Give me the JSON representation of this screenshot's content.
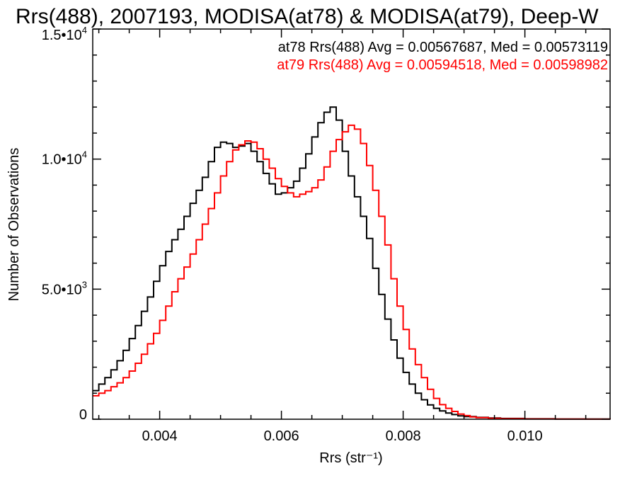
{
  "chart_data": {
    "type": "line",
    "style": "step",
    "title": "Rrs(488), 2007193, MODISA(at78) & MODISA(at79), Deep-W",
    "xlabel": "Rrs (str⁻¹)",
    "ylabel": "Number of Observations",
    "xlim": [
      0.0029,
      0.0114
    ],
    "ylim": [
      0,
      15000
    ],
    "grid": false,
    "x_ticks": [
      {
        "value": 0.004,
        "label": "0.004"
      },
      {
        "value": 0.006,
        "label": "0.006"
      },
      {
        "value": 0.008,
        "label": "0.008"
      },
      {
        "value": 0.01,
        "label": "0.010"
      }
    ],
    "y_ticks": [
      {
        "value": 0,
        "label_main": "0",
        "label_exp": ""
      },
      {
        "value": 5000,
        "label_main": "5.0•10",
        "label_exp": "3"
      },
      {
        "value": 10000,
        "label_main": "1.0•10",
        "label_exp": "4"
      },
      {
        "value": 15000,
        "label_main": "1.5•10",
        "label_exp": "4"
      }
    ],
    "annotations": [
      {
        "text": "at78 Rrs(488) Avg = 0.00567687, Med = 0.00573119",
        "color": "#000000"
      },
      {
        "text": "at79 Rrs(488) Avg = 0.00594518, Med = 0.00598982",
        "color": "#ff0000"
      }
    ],
    "series": [
      {
        "color": "#000000",
        "x": [
          0.0029,
          0.003,
          0.0031,
          0.0032,
          0.0033,
          0.0034,
          0.0035,
          0.0036,
          0.0037,
          0.0038,
          0.0039,
          0.004,
          0.0041,
          0.0042,
          0.0043,
          0.0044,
          0.0045,
          0.0046,
          0.0047,
          0.0048,
          0.0049,
          0.005,
          0.0051,
          0.0052,
          0.0053,
          0.0054,
          0.0055,
          0.0056,
          0.0057,
          0.0058,
          0.0059,
          0.006,
          0.0061,
          0.0062,
          0.0063,
          0.0064,
          0.0065,
          0.0066,
          0.0067,
          0.0068,
          0.0069,
          0.007,
          0.0071,
          0.0072,
          0.0073,
          0.0074,
          0.0075,
          0.0076,
          0.0077,
          0.0078,
          0.0079,
          0.008,
          0.0081,
          0.0082,
          0.0083,
          0.0084,
          0.0085,
          0.0086,
          0.0087,
          0.0088,
          0.0089,
          0.009,
          0.0092,
          0.0094,
          0.0096,
          0.01,
          0.0105,
          0.011,
          0.0114
        ],
        "values": [
          1100,
          1350,
          1600,
          1900,
          2250,
          2650,
          3100,
          3600,
          4150,
          4700,
          5300,
          5900,
          6450,
          6900,
          7300,
          7800,
          8300,
          8800,
          9300,
          9900,
          10450,
          10650,
          10600,
          10450,
          10500,
          10600,
          10300,
          9900,
          9450,
          9050,
          8650,
          8700,
          8900,
          9150,
          9650,
          10200,
          10850,
          11400,
          11800,
          12000,
          11500,
          10300,
          9350,
          8550,
          7800,
          6950,
          5800,
          4800,
          3850,
          3050,
          2350,
          1800,
          1350,
          1000,
          750,
          550,
          420,
          320,
          240,
          180,
          130,
          100,
          70,
          45,
          30,
          15,
          8,
          5,
          0
        ]
      },
      {
        "color": "#ff0000",
        "x": [
          0.0029,
          0.003,
          0.0031,
          0.0032,
          0.0033,
          0.0034,
          0.0035,
          0.0036,
          0.0037,
          0.0038,
          0.0039,
          0.004,
          0.0041,
          0.0042,
          0.0043,
          0.0044,
          0.0045,
          0.0046,
          0.0047,
          0.0048,
          0.0049,
          0.005,
          0.0051,
          0.0052,
          0.0053,
          0.0054,
          0.0055,
          0.0056,
          0.0057,
          0.0058,
          0.0059,
          0.006,
          0.0061,
          0.0062,
          0.0063,
          0.0064,
          0.0065,
          0.0066,
          0.0067,
          0.0068,
          0.0069,
          0.007,
          0.0071,
          0.0072,
          0.0073,
          0.0074,
          0.0075,
          0.0076,
          0.0077,
          0.0078,
          0.0079,
          0.008,
          0.0081,
          0.0082,
          0.0083,
          0.0084,
          0.0085,
          0.0086,
          0.0087,
          0.0088,
          0.0089,
          0.009,
          0.0091,
          0.0092,
          0.0094,
          0.0096,
          0.01,
          0.0105,
          0.011,
          0.0114
        ],
        "values": [
          900,
          1000,
          1100,
          1250,
          1400,
          1600,
          1850,
          2150,
          2500,
          2900,
          3300,
          3800,
          4350,
          4900,
          5400,
          5850,
          6350,
          6900,
          7500,
          8100,
          8700,
          9350,
          9900,
          10350,
          10550,
          10700,
          10650,
          10400,
          10000,
          9650,
          9250,
          8950,
          8700,
          8550,
          8650,
          8750,
          8900,
          9200,
          9700,
          10300,
          10750,
          11050,
          11300,
          11150,
          10600,
          9750,
          8800,
          7800,
          6700,
          5400,
          4350,
          3450,
          2700,
          2100,
          1600,
          1150,
          800,
          560,
          420,
          300,
          200,
          140,
          90,
          60,
          35,
          20,
          10,
          5,
          3,
          0
        ]
      }
    ]
  }
}
